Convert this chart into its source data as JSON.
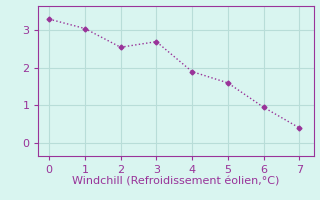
{
  "x": [
    0,
    1,
    2,
    3,
    4,
    5,
    6,
    7
  ],
  "y": [
    3.3,
    3.05,
    2.55,
    2.7,
    1.9,
    1.6,
    0.95,
    0.4
  ],
  "line_color": "#993399",
  "marker": "D",
  "marker_size": 2.5,
  "line_width": 1.0,
  "line_style": ":",
  "background_color": "#d9f5f0",
  "grid_color": "#b8ddd8",
  "xlabel": "Windchill (Refroidissement éolien,°C)",
  "xlabel_color": "#993399",
  "xlabel_fontsize": 8,
  "tick_color": "#993399",
  "tick_fontsize": 8,
  "xlim": [
    -0.3,
    7.4
  ],
  "ylim": [
    -0.35,
    3.65
  ],
  "xticks": [
    0,
    1,
    2,
    3,
    4,
    5,
    6,
    7
  ],
  "yticks": [
    0,
    1,
    2,
    3
  ]
}
